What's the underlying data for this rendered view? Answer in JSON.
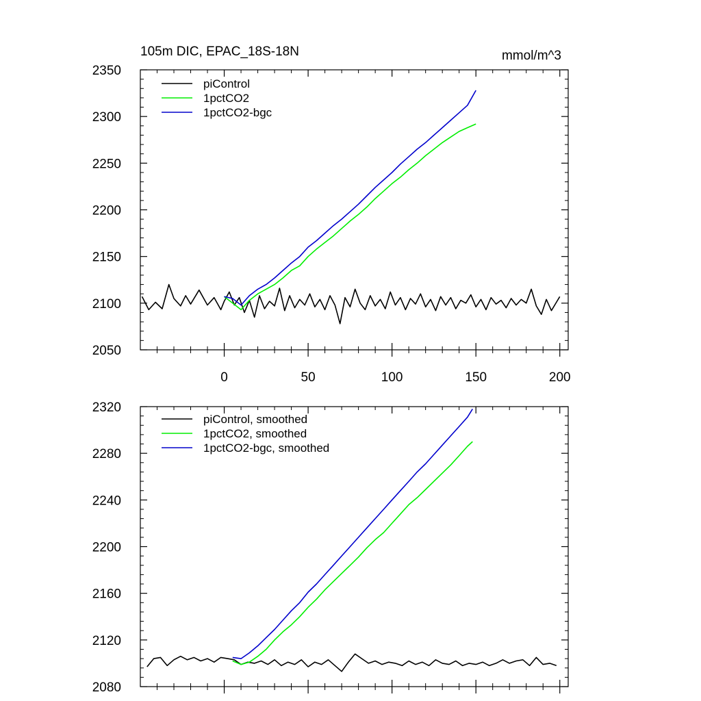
{
  "chart_data": [
    {
      "type": "line",
      "title": "105m DIC, EPAC_18S-18N",
      "units": "mmol/m^3",
      "xlim": [
        -50,
        205
      ],
      "ylim": [
        2050,
        2350
      ],
      "xticks": [
        0,
        50,
        100,
        150,
        200
      ],
      "yticks": [
        2050,
        2100,
        2150,
        2200,
        2250,
        2300,
        2350
      ],
      "xtick_labels": [
        "0",
        "50",
        "100",
        "150",
        "200"
      ],
      "ytick_labels": [
        "2050",
        "2100",
        "2150",
        "2200",
        "2250",
        "2300",
        "2350"
      ],
      "grid": false,
      "legend_position": "top-left",
      "series": [
        {
          "name": "piControl",
          "color": "#000000",
          "x": [
            -49,
            -45,
            -41,
            -37,
            -33,
            -30,
            -26,
            -23,
            -20,
            -15,
            -10,
            -6,
            -2,
            0,
            3,
            6,
            9,
            12,
            15,
            18,
            21,
            24,
            27,
            30,
            33,
            36,
            39,
            42,
            45,
            48,
            51,
            54,
            57,
            60,
            63,
            66,
            69,
            72,
            75,
            78,
            81,
            84,
            87,
            90,
            93,
            96,
            99,
            102,
            105,
            108,
            111,
            114,
            117,
            120,
            123,
            126,
            129,
            132,
            135,
            138,
            141,
            144,
            147,
            150,
            153,
            156,
            159,
            162,
            165,
            168,
            171,
            174,
            177,
            180,
            183,
            186,
            189,
            192,
            195,
            198,
            200
          ],
          "y": [
            2107,
            2093,
            2101,
            2094,
            2120,
            2105,
            2097,
            2108,
            2099,
            2114,
            2098,
            2106,
            2093,
            2102,
            2112,
            2098,
            2106,
            2090,
            2103,
            2085,
            2108,
            2094,
            2102,
            2097,
            2116,
            2092,
            2108,
            2095,
            2104,
            2098,
            2110,
            2096,
            2104,
            2093,
            2108,
            2098,
            2078,
            2106,
            2096,
            2115,
            2100,
            2093,
            2108,
            2097,
            2104,
            2094,
            2112,
            2098,
            2106,
            2093,
            2105,
            2099,
            2110,
            2096,
            2104,
            2092,
            2107,
            2098,
            2106,
            2094,
            2103,
            2100,
            2109,
            2096,
            2104,
            2093,
            2106,
            2099,
            2103,
            2095,
            2105,
            2098,
            2104,
            2100,
            2115,
            2097,
            2088,
            2104,
            2092,
            2101,
            2107
          ]
        },
        {
          "name": "1pctCO2",
          "color": "#00ee00",
          "x": [
            0,
            5,
            10,
            15,
            20,
            25,
            30,
            35,
            40,
            45,
            50,
            55,
            60,
            65,
            70,
            75,
            80,
            85,
            90,
            95,
            100,
            105,
            110,
            115,
            120,
            125,
            130,
            135,
            140,
            145,
            150
          ],
          "y": [
            2107,
            2100,
            2093,
            2103,
            2110,
            2115,
            2120,
            2127,
            2135,
            2140,
            2150,
            2158,
            2165,
            2172,
            2180,
            2188,
            2195,
            2203,
            2212,
            2220,
            2228,
            2235,
            2243,
            2250,
            2258,
            2265,
            2272,
            2278,
            2284,
            2288,
            2292
          ]
        },
        {
          "name": "1pctCO2-bgc",
          "color": "#0000cc",
          "x": [
            0,
            5,
            10,
            15,
            20,
            25,
            30,
            35,
            40,
            45,
            50,
            55,
            60,
            65,
            70,
            75,
            80,
            85,
            90,
            95,
            100,
            105,
            110,
            115,
            120,
            125,
            130,
            135,
            140,
            145,
            150
          ],
          "y": [
            2107,
            2105,
            2098,
            2108,
            2115,
            2120,
            2127,
            2135,
            2143,
            2150,
            2160,
            2167,
            2175,
            2183,
            2190,
            2198,
            2206,
            2215,
            2224,
            2232,
            2240,
            2249,
            2257,
            2265,
            2272,
            2280,
            2288,
            2296,
            2304,
            2312,
            2328
          ]
        }
      ]
    },
    {
      "type": "line",
      "xlim": [
        -50,
        205
      ],
      "ylim": [
        2080,
        2320
      ],
      "xticks": [
        0,
        50,
        100,
        150,
        200
      ],
      "yticks": [
        2080,
        2120,
        2160,
        2200,
        2240,
        2280,
        2320
      ],
      "ytick_labels": [
        "2080",
        "2120",
        "2160",
        "2200",
        "2240",
        "2280",
        "2320"
      ],
      "grid": false,
      "legend_position": "top-left",
      "series": [
        {
          "name": "piControl, smoothed",
          "color": "#000000",
          "x": [
            -46,
            -42,
            -38,
            -34,
            -30,
            -26,
            -22,
            -18,
            -14,
            -10,
            -6,
            -2,
            2,
            6,
            10,
            14,
            18,
            22,
            26,
            30,
            34,
            38,
            42,
            46,
            50,
            54,
            58,
            62,
            66,
            70,
            74,
            78,
            82,
            86,
            90,
            94,
            98,
            102,
            106,
            110,
            114,
            118,
            122,
            126,
            130,
            134,
            138,
            142,
            146,
            150,
            154,
            158,
            162,
            166,
            170,
            174,
            178,
            182,
            186,
            190,
            194,
            198
          ],
          "y": [
            2097,
            2104,
            2105,
            2098,
            2103,
            2106,
            2103,
            2105,
            2102,
            2104,
            2101,
            2105,
            2104,
            2103,
            2099,
            2101,
            2100,
            2102,
            2099,
            2103,
            2098,
            2101,
            2099,
            2103,
            2097,
            2101,
            2099,
            2103,
            2098,
            2093,
            2101,
            2108,
            2104,
            2100,
            2102,
            2099,
            2101,
            2100,
            2098,
            2102,
            2099,
            2101,
            2098,
            2103,
            2100,
            2099,
            2102,
            2098,
            2100,
            2099,
            2101,
            2098,
            2100,
            2103,
            2100,
            2102,
            2103,
            2098,
            2105,
            2099,
            2100,
            2098
          ]
        },
        {
          "name": "1pctCO2, smoothed",
          "color": "#00ee00",
          "x": [
            5,
            10,
            15,
            20,
            25,
            30,
            35,
            40,
            45,
            50,
            55,
            60,
            65,
            70,
            75,
            80,
            85,
            90,
            95,
            100,
            105,
            110,
            115,
            120,
            125,
            130,
            135,
            140,
            145,
            148
          ],
          "y": [
            2102,
            2099,
            2101,
            2106,
            2112,
            2120,
            2127,
            2133,
            2140,
            2148,
            2155,
            2163,
            2170,
            2177,
            2184,
            2191,
            2199,
            2206,
            2212,
            2220,
            2228,
            2236,
            2242,
            2249,
            2256,
            2263,
            2270,
            2278,
            2286,
            2290
          ]
        },
        {
          "name": "1pctCO2-bgc, smoothed",
          "color": "#0000cc",
          "x": [
            5,
            10,
            15,
            20,
            25,
            30,
            35,
            40,
            45,
            50,
            55,
            60,
            65,
            70,
            75,
            80,
            85,
            90,
            95,
            100,
            105,
            110,
            115,
            120,
            125,
            130,
            135,
            140,
            145,
            148
          ],
          "y": [
            2105,
            2104,
            2109,
            2115,
            2122,
            2129,
            2137,
            2145,
            2152,
            2161,
            2168,
            2176,
            2184,
            2192,
            2200,
            2208,
            2216,
            2224,
            2232,
            2240,
            2248,
            2256,
            2264,
            2271,
            2279,
            2287,
            2295,
            2303,
            2311,
            2318
          ]
        }
      ]
    }
  ]
}
